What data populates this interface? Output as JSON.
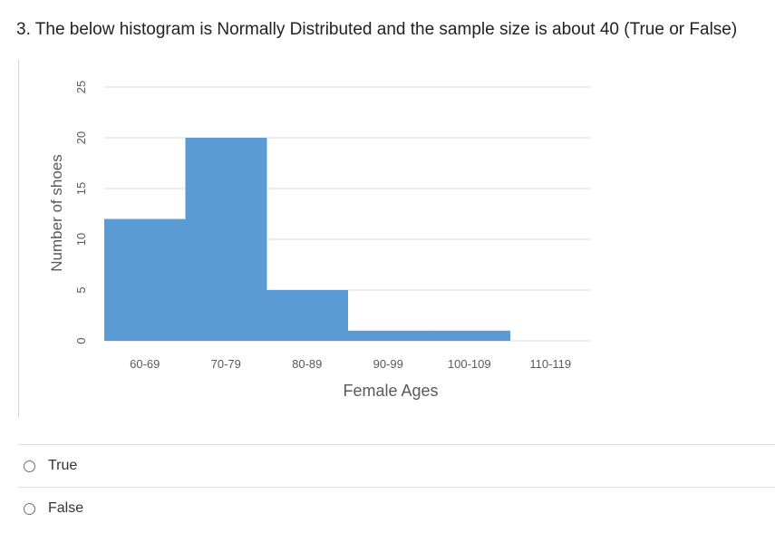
{
  "question": {
    "text": "3. The below histogram is Normally Distributed and the sample size is about 40 (True or False)"
  },
  "chart_data": {
    "type": "bar",
    "title": "",
    "xlabel": "Female Ages",
    "ylabel": "Number of shoes",
    "categories": [
      "60-69",
      "70-79",
      "80-89",
      "90-99",
      "100-109",
      "110-119"
    ],
    "values": [
      12,
      20,
      5,
      1,
      1,
      0
    ],
    "ylim": [
      0,
      25
    ],
    "yticks": [
      0,
      5,
      10,
      15,
      20,
      25
    ],
    "grid": true,
    "bar_color": "#5B9BD5",
    "gap_width": 0
  },
  "answers": [
    {
      "label": "True"
    },
    {
      "label": "False"
    }
  ]
}
